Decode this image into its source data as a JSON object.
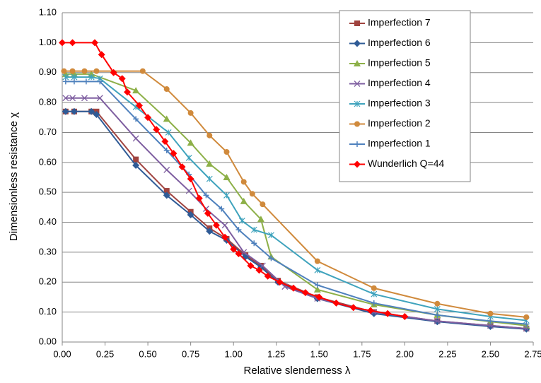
{
  "chart_data": {
    "type": "line",
    "xlabel": "Relative slenderness  λ",
    "ylabel": "Dimensionless resistance  χ",
    "xlim": [
      0,
      2.75
    ],
    "ylim": [
      0,
      1.1
    ],
    "xticks": [
      {
        "value": 0,
        "label": "0.00"
      },
      {
        "value": 0.25,
        "label": "0.25"
      },
      {
        "value": 0.5,
        "label": "0.50"
      },
      {
        "value": 0.75,
        "label": "0.75"
      },
      {
        "value": 1,
        "label": "1.00"
      },
      {
        "value": 1.25,
        "label": "1.25"
      },
      {
        "value": 1.5,
        "label": "1.50"
      },
      {
        "value": 1.75,
        "label": "1.75"
      },
      {
        "value": 2,
        "label": "2.00"
      },
      {
        "value": 2.25,
        "label": "2.25"
      },
      {
        "value": 2.5,
        "label": "2.50"
      },
      {
        "value": 2.75,
        "label": "2.75"
      }
    ],
    "yticks": [
      {
        "value": 0,
        "label": "0.00"
      },
      {
        "value": 0.1,
        "label": "0.10"
      },
      {
        "value": 0.2,
        "label": "0.20"
      },
      {
        "value": 0.3,
        "label": "0.30"
      },
      {
        "value": 0.4,
        "label": "0.40"
      },
      {
        "value": 0.5,
        "label": "0.50"
      },
      {
        "value": 0.6,
        "label": "0.60"
      },
      {
        "value": 0.7,
        "label": "0.70"
      },
      {
        "value": 0.8,
        "label": "0.80"
      },
      {
        "value": 0.9,
        "label": "0.90"
      },
      {
        "value": 1,
        "label": "1.00"
      },
      {
        "value": 1.1,
        "label": "1.10"
      }
    ],
    "grid": true,
    "legend": "upper right",
    "series": [
      {
        "name": "Imperfection 7",
        "color": "#a0433f",
        "marker": "square",
        "x": [
          0.02,
          0.07,
          0.17,
          0.2,
          0.43,
          0.61,
          0.75,
          0.86,
          0.96,
          1.07,
          1.16,
          1.26,
          1.49,
          1.82,
          2.19,
          2.5,
          2.71
        ],
        "values": [
          0.77,
          0.77,
          0.77,
          0.77,
          0.61,
          0.505,
          0.435,
          0.38,
          0.345,
          0.29,
          0.255,
          0.205,
          0.15,
          0.1,
          0.07,
          0.055,
          0.045
        ]
      },
      {
        "name": "Imperfection 6",
        "color": "#2f5b96",
        "marker": "diamond",
        "x": [
          0.02,
          0.07,
          0.17,
          0.2,
          0.43,
          0.61,
          0.75,
          0.86,
          0.96,
          1.07,
          1.16,
          1.26,
          1.49,
          1.82,
          2.19,
          2.5,
          2.71
        ],
        "values": [
          0.77,
          0.77,
          0.77,
          0.76,
          0.59,
          0.49,
          0.425,
          0.37,
          0.34,
          0.285,
          0.25,
          0.2,
          0.145,
          0.095,
          0.068,
          0.052,
          0.043
        ]
      },
      {
        "name": "Imperfection 5",
        "color": "#8db048",
        "marker": "triangle",
        "x": [
          0.02,
          0.07,
          0.17,
          0.43,
          0.61,
          0.75,
          0.86,
          0.96,
          1.06,
          1.16,
          1.22,
          1.49,
          1.82,
          2.19,
          2.5,
          2.71
        ],
        "values": [
          0.895,
          0.895,
          0.895,
          0.84,
          0.745,
          0.665,
          0.595,
          0.55,
          0.47,
          0.41,
          0.285,
          0.175,
          0.125,
          0.09,
          0.068,
          0.055
        ]
      },
      {
        "name": "Imperfection 4",
        "color": "#7e5ea0",
        "marker": "x",
        "x": [
          0.02,
          0.06,
          0.13,
          0.22,
          0.43,
          0.61,
          0.74,
          0.84,
          0.95,
          1.06,
          1.17,
          1.3,
          1.49,
          1.82,
          2.19,
          2.5,
          2.71
        ],
        "values": [
          0.815,
          0.815,
          0.815,
          0.815,
          0.68,
          0.575,
          0.505,
          0.445,
          0.39,
          0.3,
          0.255,
          0.185,
          0.145,
          0.1,
          0.07,
          0.055,
          0.045
        ]
      },
      {
        "name": "Imperfection 3",
        "color": "#3fa3bd",
        "marker": "star",
        "x": [
          0.02,
          0.07,
          0.17,
          0.22,
          0.43,
          0.62,
          0.74,
          0.86,
          0.96,
          1.05,
          1.12,
          1.22,
          1.49,
          1.82,
          2.19,
          2.5,
          2.71
        ],
        "values": [
          0.885,
          0.885,
          0.885,
          0.88,
          0.785,
          0.7,
          0.615,
          0.545,
          0.49,
          0.405,
          0.375,
          0.357,
          0.24,
          0.16,
          0.11,
          0.085,
          0.072
        ]
      },
      {
        "name": "Imperfection 2",
        "color": "#d08a3c",
        "marker": "circle",
        "x": [
          0.01,
          0.06,
          0.13,
          0.2,
          0.47,
          0.61,
          0.75,
          0.86,
          0.96,
          1.06,
          1.11,
          1.17,
          1.49,
          1.82,
          2.19,
          2.5,
          2.71
        ],
        "values": [
          0.905,
          0.905,
          0.905,
          0.905,
          0.905,
          0.845,
          0.765,
          0.69,
          0.635,
          0.535,
          0.495,
          0.46,
          0.27,
          0.18,
          0.128,
          0.095,
          0.083
        ]
      },
      {
        "name": "Imperfection 1",
        "color": "#4f81bd",
        "marker": "plus",
        "x": [
          0.02,
          0.07,
          0.14,
          0.22,
          0.43,
          0.61,
          0.74,
          0.84,
          0.93,
          1.03,
          1.12,
          1.22,
          1.49,
          1.82,
          2.19,
          2.5,
          2.71
        ],
        "values": [
          0.87,
          0.87,
          0.87,
          0.87,
          0.745,
          0.64,
          0.56,
          0.49,
          0.445,
          0.375,
          0.33,
          0.28,
          0.19,
          0.13,
          0.09,
          0.07,
          0.06
        ]
      },
      {
        "name": "Wunderlich Q=44",
        "color": "#ff0000",
        "marker": "diamond",
        "x": [
          0,
          0.06,
          0.19,
          0.23,
          0.3,
          0.35,
          0.38,
          0.45,
          0.5,
          0.55,
          0.6,
          0.65,
          0.7,
          0.75,
          0.8,
          0.85,
          0.9,
          0.95,
          1.0,
          1.03,
          1.1,
          1.15,
          1.2,
          1.27,
          1.35,
          1.42,
          1.5,
          1.6,
          1.7,
          1.8,
          1.9,
          2.0
        ],
        "values": [
          1.0,
          1.0,
          1.0,
          0.96,
          0.9,
          0.88,
          0.835,
          0.79,
          0.75,
          0.71,
          0.67,
          0.63,
          0.585,
          0.545,
          0.48,
          0.43,
          0.39,
          0.35,
          0.31,
          0.295,
          0.255,
          0.24,
          0.22,
          0.2,
          0.18,
          0.165,
          0.15,
          0.13,
          0.115,
          0.105,
          0.095,
          0.085
        ]
      }
    ]
  }
}
